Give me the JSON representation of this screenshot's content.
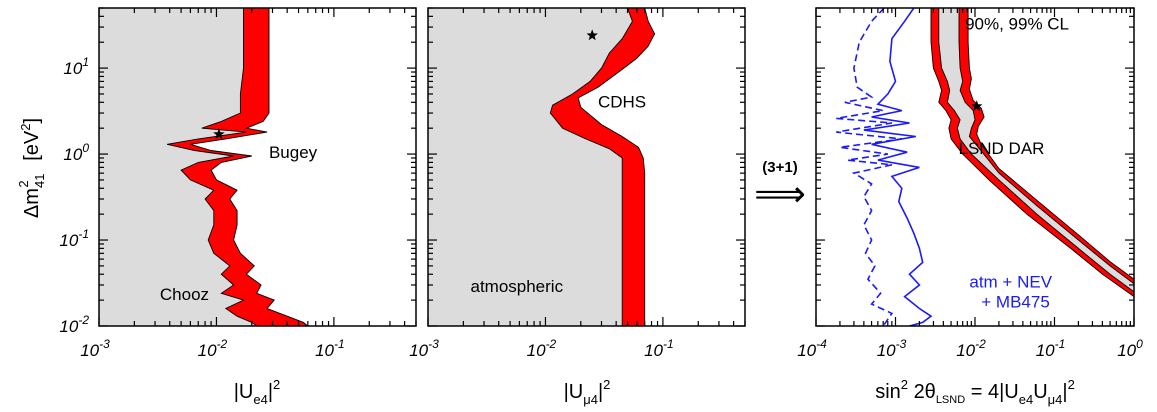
{
  "chart_data": [
    {
      "type": "area",
      "panel": "left",
      "x_scale": "log",
      "y_scale": "log",
      "xlim": [
        0.001,
        0.5
      ],
      "ylim": [
        0.01,
        50
      ],
      "xlabel": {
        "base": "|U",
        "sub": "e4",
        "sup": "2",
        "close": "|"
      },
      "ylabel": {
        "base": "Δm",
        "sub": "41",
        "sup": "2",
        "unit": "[eV",
        "unit_sup": "2",
        "unit_close": "]"
      },
      "x_ticks": [
        {
          "base": "10",
          "exp": "-3"
        },
        {
          "base": "10",
          "exp": "-2"
        },
        {
          "base": "10",
          "exp": "-1"
        }
      ],
      "y_ticks": [
        {
          "base": "10",
          "exp": "-2"
        },
        {
          "base": "10",
          "exp": "-1"
        },
        {
          "base": "10",
          "exp": "0"
        },
        {
          "base": "10",
          "exp": "1"
        }
      ],
      "annotations": [
        {
          "text": "Bugey",
          "x": 0.028,
          "y": 0.9
        },
        {
          "text": "Chooz",
          "x": 0.0033,
          "y": 0.02
        }
      ],
      "best_fit": {
        "x": 0.0105,
        "y": 1.7
      },
      "band_90": [
        [
          0.017,
          50
        ],
        [
          0.017,
          20
        ],
        [
          0.017,
          10
        ],
        [
          0.016,
          5
        ],
        [
          0.016,
          3
        ],
        [
          0.011,
          2.4
        ],
        [
          0.0075,
          2.0
        ],
        [
          0.018,
          1.8
        ],
        [
          0.007,
          1.5
        ],
        [
          0.0038,
          1.3
        ],
        [
          0.0065,
          1.1
        ],
        [
          0.014,
          0.95
        ],
        [
          0.007,
          0.8
        ],
        [
          0.005,
          0.65
        ],
        [
          0.006,
          0.5
        ],
        [
          0.0095,
          0.38
        ],
        [
          0.008,
          0.3
        ],
        [
          0.0095,
          0.22
        ],
        [
          0.0095,
          0.15
        ],
        [
          0.0085,
          0.1
        ],
        [
          0.0095,
          0.07
        ],
        [
          0.013,
          0.05
        ],
        [
          0.011,
          0.04
        ],
        [
          0.014,
          0.03
        ],
        [
          0.011,
          0.024
        ],
        [
          0.017,
          0.02
        ],
        [
          0.012,
          0.016
        ],
        [
          0.015,
          0.013
        ],
        [
          0.02,
          0.011
        ],
        [
          0.022,
          0.01
        ]
      ],
      "band_99": [
        [
          0.028,
          50
        ],
        [
          0.028,
          20
        ],
        [
          0.028,
          10
        ],
        [
          0.028,
          5
        ],
        [
          0.028,
          3
        ],
        [
          0.025,
          2.4
        ],
        [
          0.018,
          2.0
        ],
        [
          0.027,
          1.8
        ],
        [
          0.012,
          1.5
        ],
        [
          0.006,
          1.3
        ],
        [
          0.009,
          1.1
        ],
        [
          0.02,
          0.95
        ],
        [
          0.011,
          0.8
        ],
        [
          0.009,
          0.65
        ],
        [
          0.01,
          0.5
        ],
        [
          0.015,
          0.38
        ],
        [
          0.013,
          0.3
        ],
        [
          0.015,
          0.22
        ],
        [
          0.015,
          0.15
        ],
        [
          0.014,
          0.1
        ],
        [
          0.016,
          0.07
        ],
        [
          0.021,
          0.05
        ],
        [
          0.018,
          0.04
        ],
        [
          0.024,
          0.03
        ],
        [
          0.022,
          0.024
        ],
        [
          0.031,
          0.02
        ],
        [
          0.027,
          0.016
        ],
        [
          0.04,
          0.013
        ],
        [
          0.055,
          0.011
        ],
        [
          0.06,
          0.01
        ]
      ]
    },
    {
      "type": "area",
      "panel": "middle",
      "x_scale": "log",
      "y_scale": "log",
      "xlim": [
        0.001,
        0.5
      ],
      "ylim": [
        0.01,
        50
      ],
      "xlabel": {
        "base": "|U",
        "sub": "μ4",
        "sup": "2",
        "close": "|"
      },
      "x_ticks": [
        {
          "base": "10",
          "exp": "-3"
        },
        {
          "base": "10",
          "exp": "-2"
        },
        {
          "base": "10",
          "exp": "-1"
        }
      ],
      "annotations": [
        {
          "text": "CDHS",
          "x": 0.028,
          "y": 3.5
        },
        {
          "text": "atmospheric",
          "x": 0.0023,
          "y": 0.025
        }
      ],
      "best_fit": {
        "x": 0.025,
        "y": 24
      },
      "band_90": [
        [
          0.05,
          50
        ],
        [
          0.055,
          35
        ],
        [
          0.045,
          22
        ],
        [
          0.035,
          15
        ],
        [
          0.03,
          10
        ],
        [
          0.024,
          7
        ],
        [
          0.017,
          5
        ],
        [
          0.0115,
          3.7
        ],
        [
          0.011,
          3
        ],
        [
          0.014,
          2
        ],
        [
          0.022,
          1.5
        ],
        [
          0.035,
          1.15
        ],
        [
          0.045,
          0.9
        ],
        [
          0.045,
          0.6
        ],
        [
          0.045,
          0.3
        ],
        [
          0.045,
          0.1
        ],
        [
          0.045,
          0.03
        ],
        [
          0.045,
          0.01
        ]
      ],
      "band_99": [
        [
          0.07,
          50
        ],
        [
          0.075,
          35
        ],
        [
          0.085,
          25
        ],
        [
          0.075,
          18
        ],
        [
          0.06,
          13
        ],
        [
          0.042,
          9
        ],
        [
          0.028,
          6
        ],
        [
          0.019,
          4.5
        ],
        [
          0.02,
          3.5
        ],
        [
          0.03,
          2.2
        ],
        [
          0.045,
          1.6
        ],
        [
          0.062,
          1.2
        ],
        [
          0.068,
          0.9
        ],
        [
          0.07,
          0.6
        ],
        [
          0.07,
          0.3
        ],
        [
          0.07,
          0.1
        ],
        [
          0.07,
          0.03
        ],
        [
          0.07,
          0.01
        ]
      ]
    },
    {
      "type": "line",
      "panel": "right",
      "x_scale": "log",
      "y_scale": "log",
      "xlim": [
        0.0001,
        1
      ],
      "ylim": [
        0.01,
        50
      ],
      "xlabel": {
        "text1": "sin",
        "sup1": "2",
        "text2": "2θ",
        "sub1": "LSND",
        "text3": "= 4|U",
        "sub2": "e4",
        "text4": "U",
        "sub3": "μ4",
        "text5": "|",
        "sup2": "2"
      },
      "x_ticks": [
        {
          "base": "10",
          "exp": "-4"
        },
        {
          "base": "10",
          "exp": "-3"
        },
        {
          "base": "10",
          "exp": "-2"
        },
        {
          "base": "10",
          "exp": "-1"
        },
        {
          "base": "10",
          "exp": "0"
        }
      ],
      "annotations": [
        {
          "text": "90%, 99% CL",
          "x": 0.0075,
          "y": 28
        },
        {
          "text": "LSND DAR",
          "x": 0.0062,
          "y": 1.0
        },
        {
          "text": "atm + NEV",
          "x": 0.0085,
          "y": 0.028,
          "color": "#1a1aff"
        },
        {
          "text": "+ MB475",
          "x": 0.012,
          "y": 0.0165,
          "color": "#1a1aff"
        }
      ],
      "best_fit": {
        "x": 0.0105,
        "y": 3.6
      },
      "lsnd_inner_left": [
        [
          0.0035,
          50
        ],
        [
          0.0035,
          20
        ],
        [
          0.0038,
          10
        ],
        [
          0.0045,
          7
        ],
        [
          0.0048,
          5.5
        ],
        [
          0.0045,
          4
        ],
        [
          0.0055,
          3.2
        ],
        [
          0.0065,
          2.5
        ],
        [
          0.006,
          2
        ],
        [
          0.0065,
          1.5
        ],
        [
          0.009,
          1.0
        ],
        [
          0.02,
          0.5
        ],
        [
          0.06,
          0.2
        ],
        [
          0.2,
          0.08
        ],
        [
          0.5,
          0.04
        ],
        [
          1,
          0.025
        ]
      ],
      "lsnd_inner_right": [
        [
          1,
          0.031
        ],
        [
          0.5,
          0.05
        ],
        [
          0.2,
          0.1
        ],
        [
          0.06,
          0.25
        ],
        [
          0.02,
          0.6
        ],
        [
          0.011,
          1.2
        ],
        [
          0.0085,
          1.6
        ],
        [
          0.009,
          2
        ],
        [
          0.01,
          2.5
        ],
        [
          0.0095,
          3.2
        ],
        [
          0.0075,
          4
        ],
        [
          0.0065,
          5.5
        ],
        [
          0.007,
          7
        ],
        [
          0.0065,
          10
        ],
        [
          0.0063,
          20
        ],
        [
          0.0063,
          50
        ]
      ],
      "lsnd_outer_left": [
        [
          0.0028,
          50
        ],
        [
          0.0028,
          20
        ],
        [
          0.003,
          10
        ],
        [
          0.0035,
          7
        ],
        [
          0.0038,
          5.5
        ],
        [
          0.0035,
          4
        ],
        [
          0.0043,
          3.2
        ],
        [
          0.005,
          2.5
        ],
        [
          0.0047,
          2
        ],
        [
          0.005,
          1.5
        ],
        [
          0.007,
          1.0
        ],
        [
          0.015,
          0.5
        ],
        [
          0.045,
          0.2
        ],
        [
          0.16,
          0.08
        ],
        [
          0.4,
          0.04
        ],
        [
          1,
          0.022
        ]
      ],
      "lsnd_outer_right": [
        [
          1,
          0.035
        ],
        [
          0.5,
          0.056
        ],
        [
          0.2,
          0.115
        ],
        [
          0.06,
          0.29
        ],
        [
          0.02,
          0.68
        ],
        [
          0.012,
          1.3
        ],
        [
          0.0105,
          1.7
        ],
        [
          0.011,
          2.1
        ],
        [
          0.013,
          2.7
        ],
        [
          0.012,
          3.4
        ],
        [
          0.0095,
          4.2
        ],
        [
          0.0085,
          5.7
        ],
        [
          0.009,
          7.5
        ],
        [
          0.0085,
          10
        ],
        [
          0.0082,
          20
        ],
        [
          0.0082,
          50
        ]
      ],
      "blue_dashed": [
        [
          0.00072,
          50
        ],
        [
          0.0005,
          35
        ],
        [
          0.00035,
          20
        ],
        [
          0.0003,
          10
        ],
        [
          0.00033,
          6
        ],
        [
          0.0005,
          4.6
        ],
        [
          0.00023,
          4
        ],
        [
          0.0007,
          3.2
        ],
        [
          0.00018,
          2.6
        ],
        [
          0.0009,
          2.3
        ],
        [
          0.00018,
          1.8
        ],
        [
          0.0012,
          1.5
        ],
        [
          0.0002,
          1.2
        ],
        [
          0.0008,
          1.0
        ],
        [
          0.00025,
          0.85
        ],
        [
          0.0009,
          0.75
        ],
        [
          0.0003,
          0.6
        ],
        [
          0.0005,
          0.45
        ],
        [
          0.0004,
          0.32
        ],
        [
          0.0005,
          0.22
        ],
        [
          0.0004,
          0.15
        ],
        [
          0.0005,
          0.1
        ],
        [
          0.00042,
          0.07
        ],
        [
          0.00055,
          0.05
        ],
        [
          0.00045,
          0.035
        ],
        [
          0.00065,
          0.024
        ],
        [
          0.0005,
          0.018
        ],
        [
          0.0009,
          0.014
        ],
        [
          0.0007,
          0.01
        ]
      ],
      "blue_solid": [
        [
          0.0017,
          50
        ],
        [
          0.0013,
          35
        ],
        [
          0.0009,
          22
        ],
        [
          0.00085,
          12
        ],
        [
          0.001,
          7
        ],
        [
          0.0008,
          5
        ],
        [
          0.0006,
          3.8
        ],
        [
          0.0012,
          3.2
        ],
        [
          0.0005,
          2.7
        ],
        [
          0.0015,
          2.3
        ],
        [
          0.0004,
          1.9
        ],
        [
          0.0018,
          1.6
        ],
        [
          0.0005,
          1.3
        ],
        [
          0.0014,
          1.05
        ],
        [
          0.0006,
          0.85
        ],
        [
          0.002,
          0.7
        ],
        [
          0.0009,
          0.55
        ],
        [
          0.0012,
          0.4
        ],
        [
          0.0011,
          0.28
        ],
        [
          0.0014,
          0.18
        ],
        [
          0.0017,
          0.12
        ],
        [
          0.002,
          0.08
        ],
        [
          0.0022,
          0.055
        ],
        [
          0.0015,
          0.04
        ],
        [
          0.002,
          0.03
        ],
        [
          0.0013,
          0.022
        ],
        [
          0.002,
          0.016
        ],
        [
          0.0028,
          0.013
        ],
        [
          0.0022,
          0.011
        ],
        [
          0.0015,
          0.01
        ]
      ]
    }
  ],
  "arrow": {
    "label": "(3+1)",
    "glyph": "⟹"
  },
  "colors": {
    "band": "#ff0000",
    "background_fill": "#dcdcdc",
    "blue": "#1a1aff",
    "line": "#000000"
  }
}
